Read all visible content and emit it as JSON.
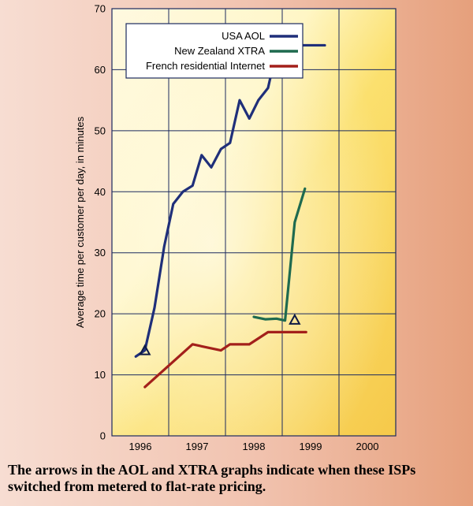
{
  "chart_data": {
    "type": "line",
    "ylabel": "Average time per customer per day, in minutes",
    "xlabel": "",
    "ylim": [
      0,
      70
    ],
    "xlim": [
      1995.5,
      2000.5
    ],
    "xticks": [
      "1996",
      "1997",
      "1998",
      "1999",
      "2000"
    ],
    "yticks": [
      "0",
      "10",
      "20",
      "30",
      "40",
      "50",
      "60",
      "70"
    ],
    "grid": true,
    "legend_position": "top",
    "series": [
      {
        "name": "USA AOL",
        "color": "#1f2f7a",
        "x": [
          1995.92,
          1996.08,
          1996.25,
          1996.42,
          1996.58,
          1996.75,
          1996.92,
          1997.08,
          1997.25,
          1997.42,
          1997.58,
          1997.75,
          1997.92,
          1998.08,
          1998.25,
          1998.42,
          1998.58,
          1998.75,
          1998.92,
          1999.08,
          1999.25
        ],
        "values": [
          13,
          14,
          21,
          31,
          38,
          40,
          41,
          46,
          44,
          47,
          48,
          55,
          52,
          55,
          57,
          64,
          64,
          64,
          64,
          64,
          64
        ]
      },
      {
        "name": "New Zealand XTRA",
        "color": "#1e6a4f",
        "x": [
          1998.0,
          1998.2,
          1998.4,
          1998.55,
          1998.72,
          1998.9
        ],
        "values": [
          19.5,
          19.1,
          19.2,
          18.9,
          35,
          40.5
        ]
      },
      {
        "name": "French residential Internet",
        "color": "#a3201b",
        "x": [
          1996.08,
          1996.92,
          1997.42,
          1997.58,
          1997.92,
          1998.25,
          1998.58,
          1998.92
        ],
        "values": [
          8,
          15,
          14,
          15,
          15,
          17,
          17,
          17
        ]
      }
    ],
    "markers": [
      {
        "series": "USA AOL",
        "x": 1996.08,
        "value": 14
      },
      {
        "series": "New Zealand XTRA",
        "x": 1998.72,
        "value": 19
      }
    ]
  },
  "caption": {
    "line1": "The arrows in the AOL and XTRA graphs indicate when these ISPs",
    "line2": "switched from metered to flat-rate pricing."
  }
}
